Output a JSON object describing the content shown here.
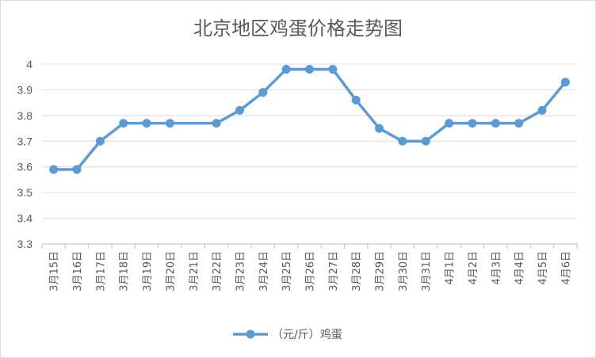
{
  "chart_data": {
    "type": "line",
    "title": "北京地区鸡蛋价格走势图",
    "xlabel": "",
    "ylabel": "",
    "ylim": [
      3.3,
      4
    ],
    "yticks": [
      "3.3",
      "3.4",
      "3.5",
      "3.6",
      "3.7",
      "3.8",
      "3.9",
      "4"
    ],
    "grid": true,
    "legend_position": "bottom",
    "categories": [
      "3月15日",
      "3月16日",
      "3月17日",
      "3月18日",
      "3月19日",
      "3月20日",
      "3月21日",
      "3月22日",
      "3月23日",
      "3月24日",
      "3月25日",
      "3月26日",
      "3月27日",
      "3月28日",
      "3月29日",
      "3月30日",
      "3月31日",
      "4月1日",
      "4月2日",
      "4月3日",
      "4月4日",
      "4月5日",
      "4月6日"
    ],
    "series": [
      {
        "name": "（元/斤）鸡蛋",
        "color": "#5b9bd5",
        "values": [
          3.59,
          3.59,
          3.7,
          3.77,
          3.77,
          3.77,
          null,
          3.77,
          3.82,
          3.89,
          3.98,
          3.98,
          3.98,
          3.86,
          3.75,
          3.7,
          3.7,
          3.77,
          3.77,
          3.77,
          3.77,
          3.82,
          3.93
        ]
      }
    ]
  }
}
